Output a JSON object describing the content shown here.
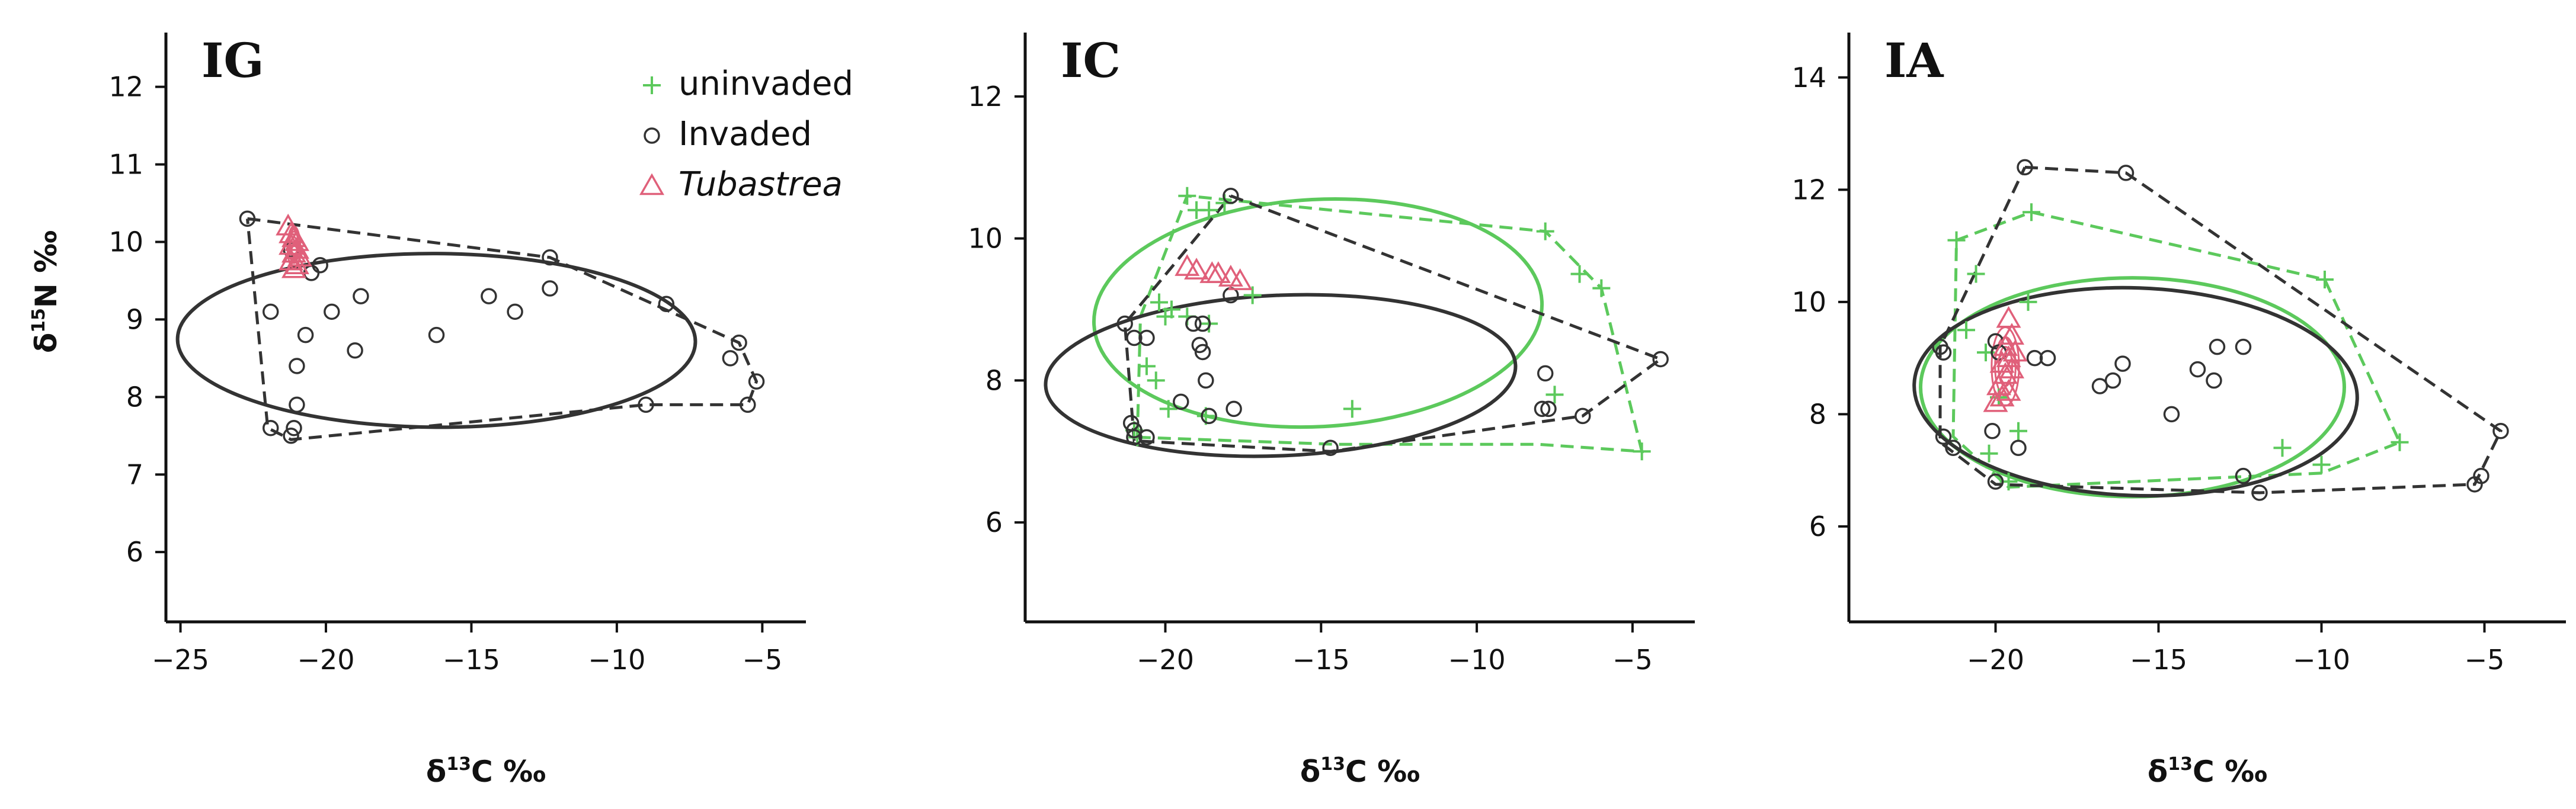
{
  "legend": [
    {
      "label": "uninvaded",
      "symbol": "plus",
      "color": "#5cc95c"
    },
    {
      "label": "Invaded",
      "symbol": "circle",
      "color": "#333333"
    },
    {
      "label": "Tubastrea",
      "symbol": "triangle",
      "color": "#e0607a",
      "italic": true
    }
  ],
  "colors": {
    "uninvaded": "#5cc95c",
    "invaded": "#333333",
    "tubastrea": "#e0607a",
    "axis": "#111111"
  },
  "chart_data": [
    {
      "id": "IG",
      "type": "scatter",
      "panel_label": "IG",
      "xlabel_prefix": "δ",
      "xlabel_sup": "13",
      "xlabel_main": "C ‰",
      "ylabel_prefix": "δ",
      "ylabel_sup": "15",
      "ylabel_main": "N ‰",
      "show_ylabel": true,
      "xlim": [
        -25.5,
        -3.5
      ],
      "ylim": [
        5.1,
        12.7
      ],
      "xticks": [
        -25,
        -20,
        -15,
        -10,
        -5
      ],
      "yticks": [
        6,
        7,
        8,
        9,
        10,
        11,
        12
      ],
      "tick_labels_x": [
        "−25",
        "−20",
        "−15",
        "−10",
        "−5"
      ],
      "tick_labels_y": [
        "6",
        "7",
        "8",
        "9",
        "10",
        "11",
        "12"
      ],
      "series": [
        {
          "name": "Invaded",
          "marker": "circle",
          "points": [
            [
              -22.7,
              10.3
            ],
            [
              -21.2,
              9.9
            ],
            [
              -20.5,
              9.6
            ],
            [
              -20.2,
              9.7
            ],
            [
              -21.9,
              9.1
            ],
            [
              -19.8,
              9.1
            ],
            [
              -18.8,
              9.3
            ],
            [
              -20.7,
              8.8
            ],
            [
              -19.0,
              8.6
            ],
            [
              -21.0,
              8.4
            ],
            [
              -16.2,
              8.8
            ],
            [
              -14.4,
              9.3
            ],
            [
              -13.5,
              9.1
            ],
            [
              -12.3,
              9.4
            ],
            [
              -12.3,
              9.8
            ],
            [
              -8.3,
              9.2
            ],
            [
              -6.1,
              8.5
            ],
            [
              -5.8,
              8.7
            ],
            [
              -5.2,
              8.2
            ],
            [
              -5.5,
              7.9
            ],
            [
              -21.0,
              7.9
            ],
            [
              -21.9,
              7.6
            ],
            [
              -21.2,
              7.5
            ],
            [
              -21.1,
              7.6
            ],
            [
              -9.0,
              7.9
            ]
          ],
          "hull": [
            [
              -22.7,
              10.3
            ],
            [
              -12.3,
              9.8
            ],
            [
              -5.8,
              8.7
            ],
            [
              -5.2,
              8.2
            ],
            [
              -5.5,
              7.9
            ],
            [
              -9.0,
              7.9
            ],
            [
              -21.2,
              7.45
            ],
            [
              -22.0,
              7.6
            ],
            [
              -22.7,
              10.3
            ]
          ],
          "ellipse": {
            "cx": -16.2,
            "cy": 8.73,
            "rx": 8.9,
            "ry": 1.12,
            "angle_deg": -0.3
          }
        },
        {
          "name": "Tubastrea",
          "marker": "triangle",
          "points": [
            [
              -21.3,
              10.2
            ],
            [
              -21.2,
              10.1
            ],
            [
              -21.1,
              10.05
            ],
            [
              -21.0,
              10.0
            ],
            [
              -21.2,
              9.95
            ],
            [
              -21.0,
              9.9
            ],
            [
              -21.1,
              9.85
            ],
            [
              -20.9,
              9.8
            ],
            [
              -21.2,
              9.75
            ],
            [
              -21.0,
              9.7
            ],
            [
              -21.1,
              9.65
            ]
          ],
          "ellipse": {
            "cx": -21.1,
            "cy": 9.93,
            "rx": 0.22,
            "ry": 0.27,
            "angle_deg": 0
          }
        }
      ]
    },
    {
      "id": "IC",
      "type": "scatter",
      "panel_label": "IC",
      "xlabel_prefix": "δ",
      "xlabel_sup": "13",
      "xlabel_main": "C ‰",
      "show_ylabel": false,
      "xlim": [
        -24.5,
        -3.0
      ],
      "ylim": [
        4.6,
        12.9
      ],
      "xticks": [
        -20,
        -15,
        -10,
        -5
      ],
      "yticks": [
        6,
        8,
        10,
        12
      ],
      "tick_labels_x": [
        "−20",
        "−15",
        "−10",
        "−5"
      ],
      "tick_labels_y": [
        "6",
        "8",
        "10",
        "12"
      ],
      "series": [
        {
          "name": "uninvaded",
          "marker": "plus",
          "points": [
            [
              -19.3,
              10.6
            ],
            [
              -19.0,
              10.4
            ],
            [
              -18.6,
              10.4
            ],
            [
              -18.1,
              10.5
            ],
            [
              -7.8,
              10.1
            ],
            [
              -6.7,
              9.5
            ],
            [
              -6.0,
              9.3
            ],
            [
              -20.2,
              9.1
            ],
            [
              -19.8,
              9.0
            ],
            [
              -20.0,
              8.9
            ],
            [
              -19.3,
              8.9
            ],
            [
              -18.6,
              8.8
            ],
            [
              -17.2,
              9.2
            ],
            [
              -20.6,
              8.2
            ],
            [
              -20.3,
              8.0
            ],
            [
              -19.9,
              7.6
            ],
            [
              -18.7,
              7.5
            ],
            [
              -14.0,
              7.6
            ],
            [
              -7.5,
              7.8
            ],
            [
              -21.0,
              7.3
            ],
            [
              -20.9,
              7.2
            ],
            [
              -4.7,
              7.0
            ]
          ],
          "hull": [
            [
              -20.9,
              7.2
            ],
            [
              -20.8,
              8.9
            ],
            [
              -19.3,
              10.6
            ],
            [
              -7.8,
              10.1
            ],
            [
              -6.0,
              9.3
            ],
            [
              -4.7,
              7.0
            ],
            [
              -8.0,
              7.1
            ],
            [
              -14.5,
              7.1
            ],
            [
              -20.9,
              7.2
            ]
          ],
          "ellipse": {
            "cx": -15.1,
            "cy": 8.95,
            "rx": 7.2,
            "ry": 1.6,
            "angle_deg": 3
          }
        },
        {
          "name": "Invaded",
          "marker": "circle",
          "points": [
            [
              -17.9,
              10.6
            ],
            [
              -21.3,
              8.8
            ],
            [
              -21.0,
              8.6
            ],
            [
              -20.6,
              8.6
            ],
            [
              -19.1,
              8.8
            ],
            [
              -18.8,
              8.8
            ],
            [
              -18.9,
              8.5
            ],
            [
              -18.8,
              8.4
            ],
            [
              -17.9,
              9.2
            ],
            [
              -18.7,
              8.0
            ],
            [
              -21.1,
              7.4
            ],
            [
              -21.0,
              7.3
            ],
            [
              -19.5,
              7.7
            ],
            [
              -17.8,
              7.6
            ],
            [
              -18.6,
              7.5
            ],
            [
              -21.0,
              7.2
            ],
            [
              -20.6,
              7.2
            ],
            [
              -14.7,
              7.05
            ],
            [
              -7.8,
              8.1
            ],
            [
              -7.7,
              7.6
            ],
            [
              -7.9,
              7.6
            ],
            [
              -6.6,
              7.5
            ],
            [
              -4.1,
              8.3
            ]
          ],
          "hull": [
            [
              -17.9,
              10.6
            ],
            [
              -4.1,
              8.3
            ],
            [
              -6.6,
              7.5
            ],
            [
              -14.7,
              7.0
            ],
            [
              -21.0,
              7.15
            ],
            [
              -21.3,
              8.8
            ],
            [
              -17.9,
              10.6
            ]
          ],
          "ellipse": {
            "cx": -16.3,
            "cy": 8.07,
            "rx": 7.55,
            "ry": 1.13,
            "angle_deg": 2.5
          }
        },
        {
          "name": "Tubastrea",
          "marker": "triangle",
          "points": [
            [
              -19.3,
              9.6
            ],
            [
              -19.0,
              9.55
            ],
            [
              -18.5,
              9.5
            ],
            [
              -17.9,
              9.45
            ],
            [
              -17.6,
              9.4
            ],
            [
              -18.3,
              9.5
            ]
          ]
        }
      ]
    },
    {
      "id": "IA",
      "type": "scatter",
      "panel_label": "IA",
      "xlabel_prefix": "δ",
      "xlabel_sup": "13",
      "xlabel_main": "C ‰",
      "show_ylabel": false,
      "xlim": [
        -24.5,
        -2.5
      ],
      "ylim": [
        4.3,
        14.8
      ],
      "xticks": [
        -20,
        -15,
        -10,
        -5
      ],
      "yticks": [
        6,
        8,
        10,
        12,
        14
      ],
      "tick_labels_x": [
        "−20",
        "−15",
        "−10",
        "−5"
      ],
      "tick_labels_y": [
        "6",
        "8",
        "10",
        "12",
        "14"
      ],
      "series": [
        {
          "name": "uninvaded",
          "marker": "plus",
          "points": [
            [
              -18.9,
              11.6
            ],
            [
              -21.2,
              11.1
            ],
            [
              -20.6,
              10.5
            ],
            [
              -19.0,
              10.0
            ],
            [
              -9.9,
              10.4
            ],
            [
              -20.9,
              9.5
            ],
            [
              -20.3,
              9.1
            ],
            [
              -19.9,
              8.3
            ],
            [
              -19.3,
              7.7
            ],
            [
              -20.2,
              7.3
            ],
            [
              -11.2,
              7.4
            ],
            [
              -7.6,
              7.5
            ],
            [
              -19.6,
              6.8
            ],
            [
              -10.0,
              7.1
            ]
          ],
          "hull": [
            [
              -18.9,
              11.6
            ],
            [
              -9.9,
              10.4
            ],
            [
              -7.6,
              7.5
            ],
            [
              -10.0,
              6.95
            ],
            [
              -19.6,
              6.7
            ],
            [
              -21.3,
              7.6
            ],
            [
              -21.2,
              11.1
            ],
            [
              -18.9,
              11.6
            ]
          ],
          "ellipse": {
            "cx": -15.8,
            "cy": 8.48,
            "rx": 6.5,
            "ry": 1.95,
            "angle_deg": 0
          }
        },
        {
          "name": "Invaded",
          "marker": "circle",
          "points": [
            [
              -19.1,
              12.4
            ],
            [
              -16.0,
              12.3
            ],
            [
              -21.7,
              9.2
            ],
            [
              -21.6,
              9.1
            ],
            [
              -20.0,
              9.3
            ],
            [
              -19.9,
              9.1
            ],
            [
              -18.8,
              9.0
            ],
            [
              -18.4,
              9.0
            ],
            [
              -16.1,
              8.9
            ],
            [
              -13.8,
              8.8
            ],
            [
              -13.2,
              9.2
            ],
            [
              -12.4,
              9.2
            ],
            [
              -16.8,
              8.5
            ],
            [
              -16.4,
              8.6
            ],
            [
              -13.3,
              8.6
            ],
            [
              -14.6,
              8.0
            ],
            [
              -21.6,
              7.6
            ],
            [
              -21.3,
              7.4
            ],
            [
              -20.1,
              7.7
            ],
            [
              -19.3,
              7.4
            ],
            [
              -20.0,
              6.8
            ],
            [
              -12.4,
              6.9
            ],
            [
              -11.9,
              6.6
            ],
            [
              -5.3,
              6.75
            ],
            [
              -5.1,
              6.9
            ],
            [
              -4.5,
              7.7
            ]
          ],
          "hull": [
            [
              -19.1,
              12.4
            ],
            [
              -16.0,
              12.3
            ],
            [
              -4.5,
              7.7
            ],
            [
              -5.3,
              6.75
            ],
            [
              -11.9,
              6.6
            ],
            [
              -20.0,
              6.75
            ],
            [
              -21.7,
              7.5
            ],
            [
              -21.7,
              9.2
            ],
            [
              -19.1,
              12.4
            ]
          ],
          "ellipse": {
            "cx": -15.7,
            "cy": 8.4,
            "rx": 6.8,
            "ry": 1.85,
            "angle_deg": -2
          }
        },
        {
          "name": "Tubastrea",
          "marker": "triangle",
          "points": [
            [
              -19.6,
              9.7
            ],
            [
              -19.5,
              9.4
            ],
            [
              -19.7,
              9.2
            ],
            [
              -19.4,
              9.1
            ],
            [
              -19.6,
              9.0
            ],
            [
              -19.8,
              8.9
            ],
            [
              -19.5,
              8.8
            ],
            [
              -19.7,
              8.7
            ],
            [
              -19.9,
              8.5
            ],
            [
              -19.6,
              8.4
            ],
            [
              -19.8,
              8.3
            ],
            [
              -20.0,
              8.2
            ]
          ],
          "ellipse": {
            "cx": -19.7,
            "cy": 8.85,
            "rx": 0.42,
            "ry": 0.7,
            "angle_deg": 0
          }
        }
      ]
    }
  ]
}
